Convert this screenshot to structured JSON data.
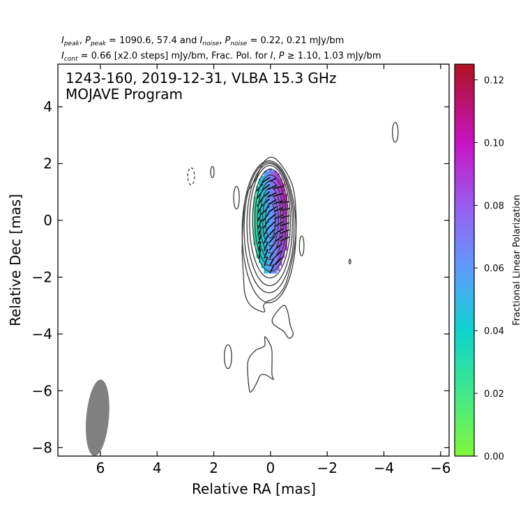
{
  "header": {
    "line1": {
      "i_sym": "I",
      "i_sub": "peak",
      "sep1": ", ",
      "p_sym": "P",
      "p_sub": "peak",
      "eq1": " = 1090.6, 57.4 and ",
      "i2_sym": "I",
      "i2_sub": "noise",
      "sep2": ", ",
      "p2_sym": "P",
      "p2_sub": "noise",
      "eq2": " = 0.22, 0.21 mJy/bm"
    },
    "line2": {
      "i_sym": "I",
      "i_sub": "cont",
      "rest1": " = 0.66 [x2.0 steps] mJy/bm, Frac. Pol. for ",
      "i_sym2": "I",
      "sep": ", ",
      "p_sym": "P",
      "rest2": " ≥ 1.10, 1.03 mJy/bm"
    }
  },
  "inset": {
    "line1": "1243-160, 2019-12-31, VLBA 15.3 GHz",
    "line2": "MOJAVE Program"
  },
  "chart_data": {
    "type": "contour",
    "source": "1243-160",
    "date": "2019-12-31",
    "instrument": "VLBA 15.3 GHz",
    "program": "MOJAVE Program",
    "xlabel": "Relative RA [mas]",
    "ylabel": "Relative Dec [mas]",
    "xlim": [
      7.5,
      -6.3
    ],
    "ylim": [
      -8.3,
      5.5
    ],
    "x_ticks": [
      6,
      4,
      2,
      0,
      -2,
      -4,
      -6
    ],
    "y_ticks": [
      4,
      2,
      0,
      -2,
      -4,
      -6,
      -8
    ],
    "x_tick_labels": [
      "6",
      "4",
      "2",
      "0",
      "−2",
      "−4",
      "−6"
    ],
    "y_tick_labels": [
      "4",
      "2",
      "0",
      "−2",
      "−4",
      "−6",
      "−8"
    ],
    "peak_flux_I_mJy_bm": 1090.6,
    "peak_flux_P_mJy_bm": 57.4,
    "noise_I_mJy_bm": 0.22,
    "noise_P_mJy_bm": 0.21,
    "base_contour_mJy_bm": 0.66,
    "contour_step_factor": 2.0,
    "frac_pol_cutoff_I_mJy_bm": 1.1,
    "frac_pol_cutoff_P_mJy_bm": 1.03,
    "core_contours": [
      {
        "level": 1,
        "center": [
          0.05,
          -0.4
        ],
        "a": 0.95,
        "b": 2.5
      },
      {
        "level": 2,
        "center": [
          0.05,
          -0.25
        ],
        "a": 0.88,
        "b": 2.3
      },
      {
        "level": 3,
        "center": [
          0.03,
          -0.15
        ],
        "a": 0.8,
        "b": 2.15
      },
      {
        "level": 4,
        "center": [
          0.02,
          -0.05
        ],
        "a": 0.72,
        "b": 1.98
      },
      {
        "level": 5,
        "center": [
          0.0,
          0.0
        ],
        "a": 0.63,
        "b": 1.8
      },
      {
        "level": 6,
        "center": [
          0.0,
          0.0
        ],
        "a": 0.55,
        "b": 1.6
      },
      {
        "level": 7,
        "center": [
          0.0,
          0.0
        ],
        "a": 0.46,
        "b": 1.38
      },
      {
        "level": 8,
        "center": [
          0.0,
          0.0
        ],
        "a": 0.37,
        "b": 1.15
      },
      {
        "level": 9,
        "center": [
          0.0,
          0.0
        ],
        "a": 0.28,
        "b": 0.9
      },
      {
        "level": 10,
        "center": [
          0.0,
          0.0
        ],
        "a": 0.18,
        "b": 0.62
      }
    ],
    "outer_contour": [
      [
        0.55,
        1.4
      ],
      [
        0.2,
        2.1
      ],
      [
        -0.2,
        2.15
      ],
      [
        -0.75,
        1.3
      ],
      [
        -0.9,
        0.2
      ],
      [
        -0.85,
        -0.9
      ],
      [
        -0.55,
        -2.2
      ],
      [
        -0.2,
        -2.7
      ],
      [
        0.1,
        -2.85
      ],
      [
        0.25,
        -3.0
      ],
      [
        0.2,
        -3.2
      ],
      [
        0.35,
        -3.2
      ],
      [
        0.7,
        -3.0
      ],
      [
        0.9,
        -2.6
      ],
      [
        0.95,
        -2.0
      ],
      [
        1.0,
        -1.0
      ],
      [
        0.95,
        0.2
      ],
      [
        0.85,
        0.9
      ]
    ],
    "isolated_contours": [
      {
        "center": [
          -4.4,
          3.1
        ],
        "a": 0.1,
        "b": 0.35,
        "dashed": false
      },
      {
        "center": [
          2.8,
          1.55
        ],
        "a": 0.12,
        "b": 0.3,
        "dashed": true
      },
      {
        "center": [
          2.05,
          1.7
        ],
        "a": 0.06,
        "b": 0.2,
        "dashed": false
      },
      {
        "center": [
          1.2,
          0.8
        ],
        "a": 0.1,
        "b": 0.4,
        "dashed": false
      },
      {
        "center": [
          -1.1,
          -0.9
        ],
        "a": 0.08,
        "b": 0.35,
        "dashed": false
      },
      {
        "center": [
          -2.8,
          -1.45
        ],
        "a": 0.03,
        "b": 0.08,
        "dashed": false
      },
      {
        "center": [
          1.5,
          -4.8
        ],
        "a": 0.13,
        "b": 0.42,
        "dashed": false
      }
    ],
    "jet_blobs": [
      [
        [
          -0.45,
          -3.0
        ],
        [
          -0.6,
          -3.2
        ],
        [
          -0.7,
          -3.7
        ],
        [
          -0.8,
          -4.0
        ],
        [
          -0.65,
          -4.15
        ],
        [
          -0.45,
          -3.9
        ],
        [
          -0.1,
          -3.65
        ],
        [
          -0.1,
          -3.4
        ]
      ],
      [
        [
          0.2,
          -4.1
        ],
        [
          0.05,
          -4.3
        ],
        [
          -0.05,
          -4.6
        ],
        [
          -0.05,
          -5.4
        ],
        [
          -0.1,
          -5.6
        ],
        [
          0.15,
          -5.45
        ],
        [
          0.35,
          -5.45
        ],
        [
          0.5,
          -5.75
        ],
        [
          0.65,
          -6.0
        ],
        [
          0.75,
          -5.95
        ],
        [
          0.8,
          -5.0
        ],
        [
          0.55,
          -4.6
        ],
        [
          0.35,
          -4.5
        ],
        [
          0.2,
          -4.4
        ]
      ]
    ],
    "beam": {
      "center": [
        6.1,
        -6.95
      ],
      "major_mas": 1.35,
      "minor_mas": 0.5,
      "pa_deg": -5,
      "color": "#808080"
    },
    "polarization_region": {
      "center": [
        0.0,
        -0.05
      ],
      "a": 0.62,
      "b": 1.85
    },
    "colorbar": {
      "label": "Fractional Linear Polarization",
      "range": [
        0.0,
        0.125
      ],
      "ticks": [
        0.0,
        0.02,
        0.04,
        0.06,
        0.08,
        0.1,
        0.12
      ],
      "tick_labels": [
        "0.00",
        "0.02",
        "0.04",
        "0.06",
        "0.08",
        "0.10",
        "0.12"
      ],
      "stops": [
        {
          "v": 0.0,
          "color": "#82f73a"
        },
        {
          "v": 0.02,
          "color": "#40e98a"
        },
        {
          "v": 0.04,
          "color": "#0ed3cf"
        },
        {
          "v": 0.06,
          "color": "#5f9bff"
        },
        {
          "v": 0.08,
          "color": "#9a5cf0"
        },
        {
          "v": 0.1,
          "color": "#c912c3"
        },
        {
          "v": 0.125,
          "color": "#b0121f"
        }
      ]
    }
  }
}
